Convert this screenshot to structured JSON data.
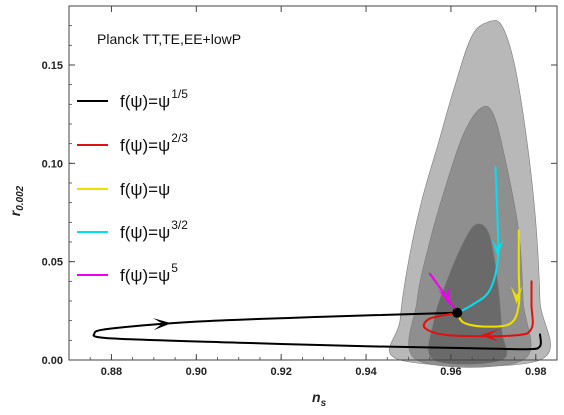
{
  "chart_data": {
    "type": "line",
    "annotation": "Planck TT,TE,EE+lowP",
    "xlabel": "n",
    "xlabel_sub": "s",
    "ylabel": "r",
    "ylabel_sub": "0.002",
    "xlim": [
      0.87,
      0.985
    ],
    "ylim": [
      0.0,
      0.18
    ],
    "x_ticks": [
      0.88,
      0.9,
      0.92,
      0.94,
      0.96,
      0.98
    ],
    "x_tick_labels": [
      "0.88",
      "0.90",
      "0.92",
      "0.94",
      "0.96",
      "0.98"
    ],
    "y_ticks": [
      0.0,
      0.05,
      0.1,
      0.15
    ],
    "y_tick_labels": [
      "0.00",
      "0.05",
      "0.10",
      "0.15"
    ],
    "grid": false,
    "legend_position": "left",
    "contours": [
      {
        "level": "outer",
        "color": "#b8b8b8",
        "polygon": [
          [
            0.948,
            0.0
          ],
          [
            0.948,
            0.02
          ],
          [
            0.95,
            0.05
          ],
          [
            0.953,
            0.08
          ],
          [
            0.957,
            0.11
          ],
          [
            0.961,
            0.14
          ],
          [
            0.965,
            0.165
          ],
          [
            0.969,
            0.172
          ],
          [
            0.972,
            0.17
          ],
          [
            0.975,
            0.15
          ],
          [
            0.978,
            0.11
          ],
          [
            0.98,
            0.07
          ],
          [
            0.981,
            0.03
          ],
          [
            0.981,
            0.0
          ]
        ]
      },
      {
        "level": "middle",
        "color": "#8f8f8f",
        "polygon": [
          [
            0.952,
            0.0
          ],
          [
            0.952,
            0.03
          ],
          [
            0.955,
            0.06
          ],
          [
            0.959,
            0.09
          ],
          [
            0.963,
            0.115
          ],
          [
            0.967,
            0.128
          ],
          [
            0.97,
            0.125
          ],
          [
            0.973,
            0.1
          ],
          [
            0.976,
            0.065
          ],
          [
            0.977,
            0.03
          ],
          [
            0.977,
            0.0
          ]
        ]
      },
      {
        "level": "inner",
        "color": "#6a6a6a",
        "polygon": [
          [
            0.956,
            0.0
          ],
          [
            0.956,
            0.02
          ],
          [
            0.959,
            0.04
          ],
          [
            0.963,
            0.06
          ],
          [
            0.966,
            0.069
          ],
          [
            0.969,
            0.064
          ],
          [
            0.971,
            0.04
          ],
          [
            0.972,
            0.015
          ],
          [
            0.972,
            0.0
          ]
        ]
      }
    ],
    "center_point": {
      "x": 0.9615,
      "y": 0.024
    },
    "series": [
      {
        "label": "f(ψ)=ψ",
        "exponent": "1/5",
        "color": "#000000",
        "points": [
          [
            0.9615,
            0.024
          ],
          [
            0.93,
            0.022
          ],
          [
            0.9,
            0.0195
          ],
          [
            0.88,
            0.016
          ],
          [
            0.876,
            0.0135
          ],
          [
            0.88,
            0.011
          ],
          [
            0.91,
            0.0088
          ],
          [
            0.94,
            0.007
          ],
          [
            0.965,
            0.006
          ],
          [
            0.978,
            0.0055
          ],
          [
            0.981,
            0.007
          ],
          [
            0.981,
            0.013
          ]
        ],
        "arrow": {
          "x": 0.892,
          "y": 0.0185,
          "dx": 1,
          "dy": 0.05
        }
      },
      {
        "label": "f(ψ)=ψ",
        "exponent": "2/3",
        "color": "#e01010",
        "points": [
          [
            0.9615,
            0.024
          ],
          [
            0.955,
            0.021
          ],
          [
            0.954,
            0.016
          ],
          [
            0.96,
            0.0125
          ],
          [
            0.975,
            0.0125
          ],
          [
            0.979,
            0.016
          ],
          [
            0.979,
            0.028
          ],
          [
            0.979,
            0.04
          ]
        ],
        "arrow": {
          "x": 0.969,
          "y": 0.0125,
          "dx": -1,
          "dy": 0
        }
      },
      {
        "label": "f(ψ)=ψ",
        "exponent": "",
        "color": "#f0e000",
        "points": [
          [
            0.9615,
            0.024
          ],
          [
            0.963,
            0.019
          ],
          [
            0.968,
            0.017
          ],
          [
            0.974,
            0.0185
          ],
          [
            0.976,
            0.028
          ],
          [
            0.976,
            0.045
          ],
          [
            0.976,
            0.066
          ]
        ],
        "arrow": {
          "x": 0.9755,
          "y": 0.033,
          "dx": 0,
          "dy": -1
        }
      },
      {
        "label": "f(ψ)=ψ",
        "exponent": "3/2",
        "color": "#00e0ee",
        "points": [
          [
            0.9615,
            0.024
          ],
          [
            0.965,
            0.028
          ],
          [
            0.969,
            0.035
          ],
          [
            0.971,
            0.05
          ],
          [
            0.971,
            0.07
          ],
          [
            0.9705,
            0.098
          ]
        ],
        "arrow": {
          "x": 0.971,
          "y": 0.057,
          "dx": 0,
          "dy": -1
        }
      },
      {
        "label": "f(ψ)=ψ",
        "exponent": "5",
        "color": "#f000f0",
        "points": [
          [
            0.9615,
            0.024
          ],
          [
            0.959,
            0.032
          ],
          [
            0.957,
            0.038
          ],
          [
            0.955,
            0.044
          ]
        ],
        "arrow": {
          "x": 0.959,
          "y": 0.0325,
          "dx": 0.35,
          "dy": -1
        }
      }
    ]
  }
}
